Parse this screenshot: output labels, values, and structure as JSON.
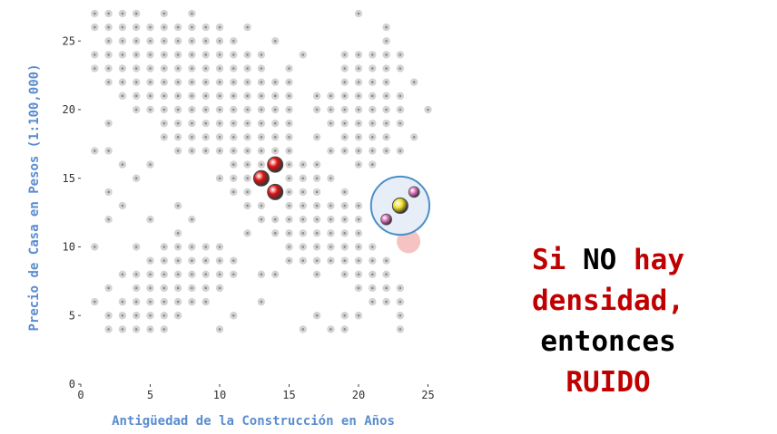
{
  "chart_data": {
    "type": "scatter",
    "xlabel": "Antigüedad de la Construcción en Años",
    "ylabel": "Precio de Casa en Pesos (1:100,000)",
    "xlim": [
      0,
      25
    ],
    "ylim": [
      0,
      27
    ],
    "x_ticks": [
      "0",
      "5",
      "10",
      "15",
      "20",
      "25"
    ],
    "y_ticks": [
      "0",
      "5",
      "10",
      "15",
      "20",
      "25"
    ],
    "grid": false,
    "colors": {
      "points": "#d4d4d4",
      "highlight": "#e01010",
      "core": "#f0e020",
      "neighbor": "#e070c0",
      "circle_fill": "#e8eef7",
      "circle_stroke": "#4a90c8",
      "noise_hint": "#f4b8b8",
      "axis_label": "#5b8ccf"
    },
    "rows": [
      {
        "y": 27,
        "x": [
          1,
          2,
          3,
          4,
          6,
          8,
          20
        ]
      },
      {
        "y": 26,
        "x": [
          1,
          2,
          3,
          4,
          5,
          6,
          7,
          8,
          9,
          10,
          12,
          22
        ]
      },
      {
        "y": 25,
        "x": [
          2,
          3,
          4,
          5,
          6,
          7,
          8,
          9,
          10,
          11,
          14,
          22
        ]
      },
      {
        "y": 24,
        "x": [
          1,
          2,
          3,
          4,
          5,
          6,
          7,
          8,
          9,
          10,
          11,
          12,
          13,
          16,
          19,
          20,
          21,
          22,
          23
        ]
      },
      {
        "y": 23,
        "x": [
          1,
          2,
          3,
          4,
          5,
          6,
          7,
          8,
          9,
          10,
          11,
          12,
          13,
          15,
          19,
          20,
          21,
          22,
          23
        ]
      },
      {
        "y": 22,
        "x": [
          2,
          3,
          4,
          5,
          6,
          7,
          8,
          9,
          10,
          11,
          12,
          13,
          14,
          15,
          19,
          20,
          21,
          22,
          24
        ]
      },
      {
        "y": 21,
        "x": [
          3,
          4,
          5,
          6,
          7,
          8,
          9,
          10,
          11,
          12,
          13,
          14,
          15,
          17,
          18,
          19,
          20,
          21,
          22,
          23
        ]
      },
      {
        "y": 20,
        "x": [
          4,
          5,
          6,
          7,
          8,
          9,
          10,
          11,
          12,
          13,
          14,
          15,
          17,
          18,
          19,
          20,
          21,
          22,
          23,
          25
        ]
      },
      {
        "y": 19,
        "x": [
          2,
          6,
          7,
          8,
          9,
          10,
          11,
          12,
          13,
          14,
          15,
          18,
          19,
          20,
          21,
          22,
          23
        ]
      },
      {
        "y": 18,
        "x": [
          6,
          7,
          8,
          9,
          10,
          11,
          12,
          13,
          14,
          15,
          17,
          19,
          20,
          21,
          22,
          24
        ]
      },
      {
        "y": 17,
        "x": [
          1,
          2,
          7,
          8,
          9,
          10,
          11,
          12,
          13,
          14,
          15,
          18,
          19,
          20,
          21,
          22,
          23
        ]
      },
      {
        "y": 16,
        "x": [
          3,
          5,
          11,
          12,
          13,
          15,
          16,
          17,
          20,
          21
        ]
      },
      {
        "y": 15,
        "x": [
          4,
          10,
          11,
          12,
          15,
          16,
          17,
          18
        ]
      },
      {
        "y": 14,
        "x": [
          2,
          11,
          12,
          15,
          16,
          17,
          19
        ]
      },
      {
        "y": 13,
        "x": [
          3,
          7,
          12,
          13,
          15,
          16,
          17,
          18,
          19,
          20
        ]
      },
      {
        "y": 12,
        "x": [
          2,
          5,
          8,
          13,
          14,
          15,
          16,
          17,
          18,
          19,
          20
        ]
      },
      {
        "y": 11,
        "x": [
          7,
          12,
          14,
          15,
          16,
          17,
          18,
          19,
          20
        ]
      },
      {
        "y": 10,
        "x": [
          1,
          4,
          6,
          7,
          8,
          9,
          10,
          15,
          16,
          17,
          18,
          19,
          20,
          21
        ]
      },
      {
        "y": 9,
        "x": [
          5,
          6,
          7,
          8,
          9,
          10,
          11,
          15,
          16,
          17,
          18,
          19,
          20,
          21,
          22
        ]
      },
      {
        "y": 8,
        "x": [
          3,
          4,
          5,
          6,
          7,
          8,
          9,
          10,
          11,
          13,
          14,
          17,
          19,
          20,
          21,
          22
        ]
      },
      {
        "y": 7,
        "x": [
          2,
          4,
          5,
          6,
          7,
          8,
          9,
          10,
          20,
          21,
          22,
          23
        ]
      },
      {
        "y": 6,
        "x": [
          1,
          3,
          4,
          5,
          6,
          7,
          8,
          9,
          13,
          21,
          22,
          23
        ]
      },
      {
        "y": 5,
        "x": [
          2,
          3,
          4,
          5,
          6,
          7,
          11,
          17,
          19,
          20,
          23
        ]
      },
      {
        "y": 4,
        "x": [
          2,
          3,
          4,
          5,
          6,
          10,
          16,
          18,
          19,
          23
        ]
      }
    ],
    "highlighted": [
      {
        "x": 13,
        "y": 15
      },
      {
        "x": 14,
        "y": 16
      },
      {
        "x": 14,
        "y": 14
      }
    ],
    "noise_cluster": {
      "center": {
        "x": 23,
        "y": 13
      },
      "radius": 2.1,
      "neighbors": [
        {
          "x": 24,
          "y": 14
        },
        {
          "x": 22,
          "y": 12
        }
      ],
      "noise_hint": {
        "x": 23.6,
        "y": 10.4
      }
    }
  },
  "caption": {
    "line1_a": "Si",
    "line1_b": "NO",
    "line1_c": "hay",
    "line2": "densidad,",
    "line3": "entonces",
    "line4": "RUIDO"
  }
}
